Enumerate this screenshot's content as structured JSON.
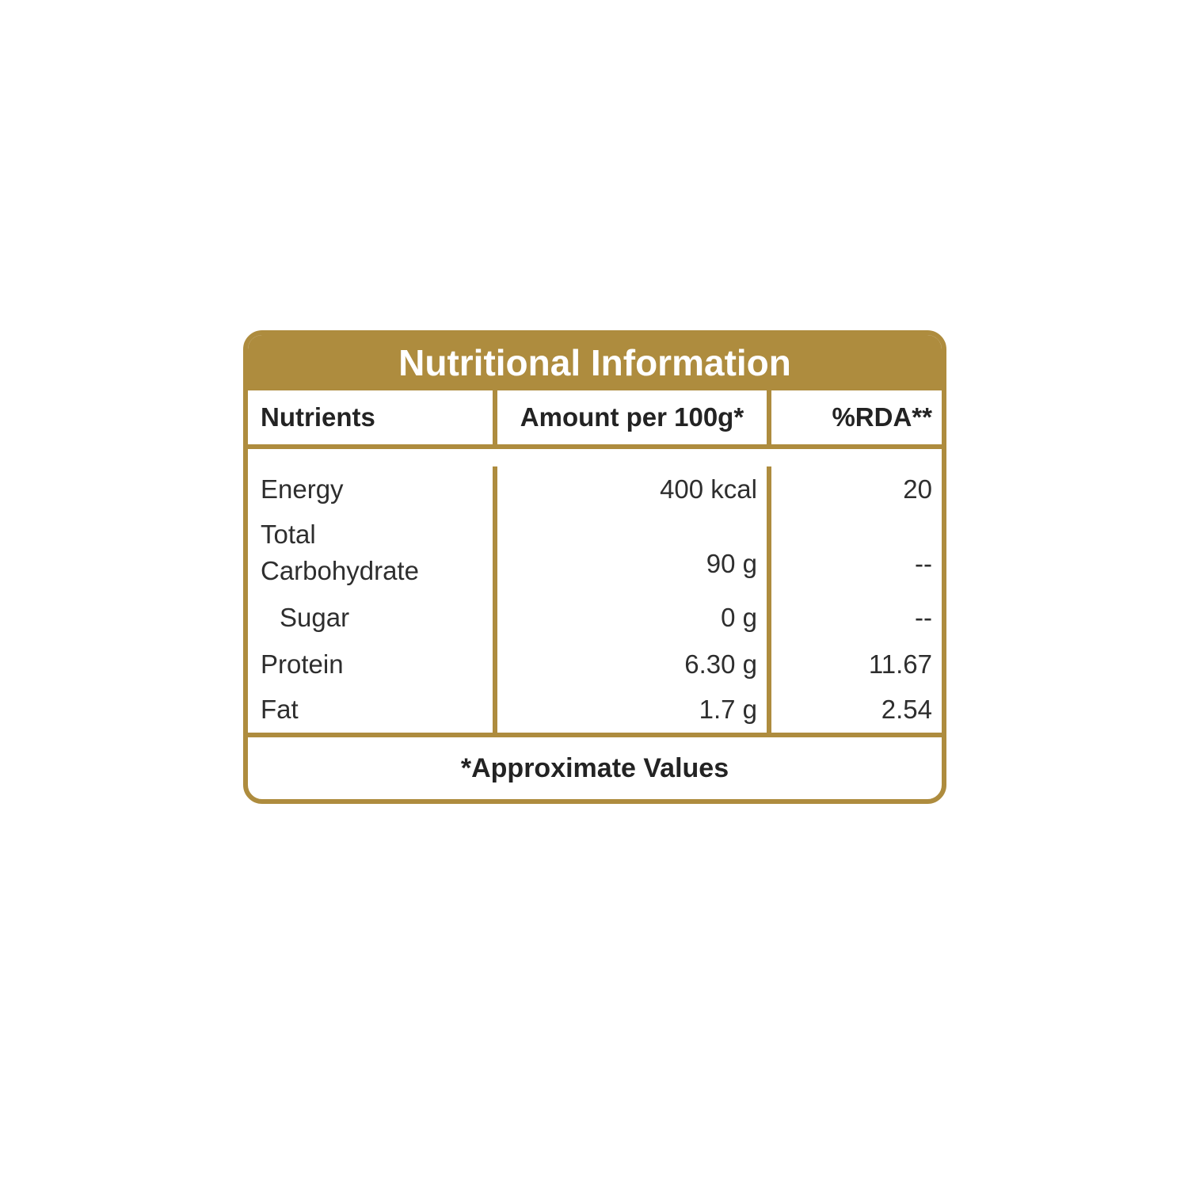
{
  "card": {
    "title": "Nutritional Information",
    "columns": {
      "nutrients": "Nutrients",
      "amount": "Amount per 100g*",
      "rda": "%RDA**"
    },
    "rows": [
      {
        "nutrient": "Energy",
        "amount": "400 kcal",
        "rda": "20"
      },
      {
        "nutrient": "Total Carbohydrate",
        "amount": "90 g",
        "rda": "--"
      },
      {
        "nutrient": "Sugar",
        "amount": "0 g",
        "rda": "--"
      },
      {
        "nutrient": "Protein",
        "amount": "6.30 g",
        "rda": "11.67"
      },
      {
        "nutrient": "Fat",
        "amount": "1.7 g",
        "rda": "2.54"
      }
    ],
    "footnote": "*Approximate Values",
    "colors": {
      "accent": "#AE8C3E",
      "text": "#2E2E2E",
      "header_text": "#FFFFFF",
      "background": "#FFFFFF"
    }
  }
}
